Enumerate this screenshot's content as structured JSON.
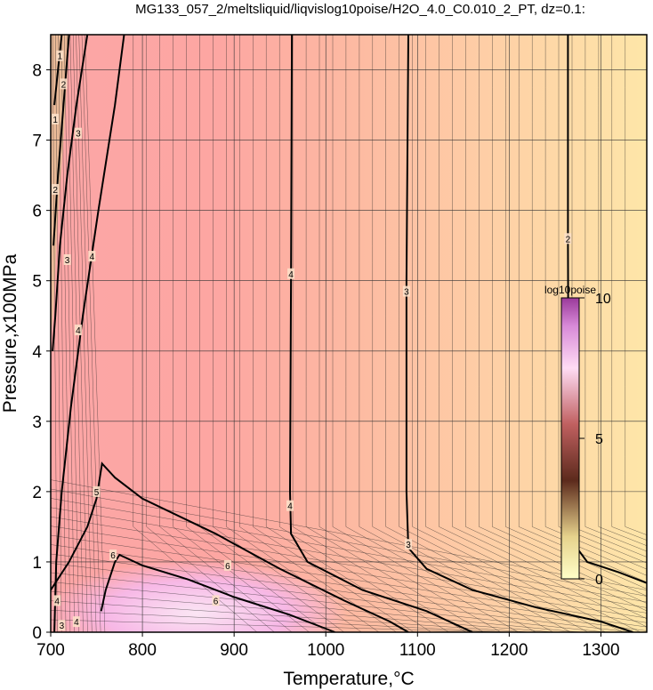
{
  "chart_data": {
    "type": "heatmap",
    "title": "MG133_057_2/meltsliquid/liqvislog10poise/H2O_4.0_C0.010_2_PT, dz=0.1:",
    "xlabel": "Temperature,°C",
    "ylabel": "Pressure,x100MPa",
    "xlim": [
      700,
      1350
    ],
    "ylim": [
      0,
      8.5
    ],
    "xticks": [
      "700",
      "800",
      "900",
      "1000",
      "1100",
      "1200",
      "1300"
    ],
    "yticks": [
      "0",
      "1",
      "2",
      "3",
      "4",
      "5",
      "6",
      "7",
      "8"
    ],
    "grid": true,
    "contour_interval": 0.1,
    "colorbar": {
      "title": "log10poise",
      "range": [
        0,
        10
      ],
      "ticks": [
        "0",
        "5",
        "10"
      ],
      "colors": [
        "#ffffc8",
        "#5c2a1c",
        "#ffdcf4",
        "#9a3a9a"
      ]
    },
    "background_colors": {
      "low_viscosity": "#fee3a6",
      "mid_viscosity": "#fdb8a0",
      "high_viscosity": "#fda6a2",
      "very_high": "#f7a2ec"
    },
    "contours": [
      {
        "level": 2,
        "label": "2",
        "points": [
          [
            1264,
            8.5
          ],
          [
            1264,
            5.5
          ],
          [
            1265,
            2.0
          ],
          [
            1268,
            1.3
          ],
          [
            1285,
            1.0
          ],
          [
            1320,
            0.85
          ],
          [
            1350,
            0.7
          ]
        ]
      },
      {
        "level": 3,
        "label": "3",
        "points": [
          [
            1090,
            8.5
          ],
          [
            1088,
            5.0
          ],
          [
            1088,
            2.0
          ],
          [
            1090,
            1.2
          ],
          [
            1110,
            0.9
          ],
          [
            1160,
            0.6
          ],
          [
            1230,
            0.35
          ],
          [
            1300,
            0.15
          ],
          [
            1335,
            0
          ]
        ]
      },
      {
        "level": 4,
        "label": "4",
        "points": [
          [
            963,
            8.5
          ],
          [
            962,
            5.0
          ],
          [
            961,
            2.0
          ],
          [
            962,
            1.4
          ],
          [
            980,
            1.0
          ],
          [
            1040,
            0.6
          ],
          [
            1110,
            0.3
          ],
          [
            1160,
            0
          ]
        ]
      },
      {
        "level": 4,
        "label": "4",
        "points": [
          [
            780,
            8.5
          ],
          [
            770,
            7.5
          ],
          [
            752,
            6.0
          ],
          [
            735,
            4.5
          ],
          [
            722,
            3.2
          ],
          [
            712,
            2.0
          ],
          [
            706,
            1.0
          ],
          [
            704,
            0
          ]
        ]
      },
      {
        "level": 5,
        "label": "5",
        "points": [
          [
            700,
            0.6
          ],
          [
            720,
            1.0
          ],
          [
            740,
            1.5
          ],
          [
            750,
            1.9
          ],
          [
            756,
            2.4
          ],
          [
            770,
            2.2
          ],
          [
            800,
            1.9
          ],
          [
            880,
            1.4
          ],
          [
            950,
            0.9
          ],
          [
            1020,
            0.45
          ],
          [
            1070,
            0.15
          ],
          [
            1090,
            0
          ]
        ]
      },
      {
        "level": 6,
        "label": "6",
        "points": [
          [
            755,
            0.3
          ],
          [
            760,
            0.6
          ],
          [
            770,
            1.0
          ],
          [
            775,
            1.1
          ],
          [
            800,
            0.95
          ],
          [
            850,
            0.75
          ],
          [
            900,
            0.5
          ],
          [
            960,
            0.25
          ],
          [
            1000,
            0.05
          ],
          [
            1010,
            0
          ]
        ]
      },
      {
        "level": 3,
        "label": "3",
        "points": [
          [
            740,
            8.5
          ],
          [
            728,
            7.5
          ],
          [
            718,
            6.5
          ],
          [
            710,
            5.5
          ],
          [
            705,
            4.5
          ],
          [
            702,
            4.0
          ]
        ]
      },
      {
        "level": 2,
        "label": "2",
        "points": [
          [
            720,
            8.5
          ],
          [
            714,
            7.5
          ],
          [
            708,
            6.5
          ],
          [
            703,
            5.5
          ]
        ]
      },
      {
        "level": 1,
        "label": "1",
        "points": [
          [
            712,
            8.5
          ],
          [
            708,
            8.0
          ],
          [
            704,
            7.5
          ]
        ]
      }
    ],
    "contour_labels": [
      {
        "text": "2",
        "x": 1264,
        "y": 5.6
      },
      {
        "text": "3",
        "x": 1088,
        "y": 4.85
      },
      {
        "text": "4",
        "x": 962,
        "y": 5.1
      },
      {
        "text": "4",
        "x": 961,
        "y": 1.8
      },
      {
        "text": "3",
        "x": 1090,
        "y": 1.25
      },
      {
        "text": "4",
        "x": 745,
        "y": 5.35
      },
      {
        "text": "4",
        "x": 730,
        "y": 4.3
      },
      {
        "text": "5",
        "x": 750,
        "y": 2.0
      },
      {
        "text": "6",
        "x": 768,
        "y": 1.1
      },
      {
        "text": "6",
        "x": 893,
        "y": 0.95
      },
      {
        "text": "6",
        "x": 880,
        "y": 0.45
      },
      {
        "text": "3",
        "x": 730,
        "y": 7.1
      },
      {
        "text": "3",
        "x": 718,
        "y": 5.3
      },
      {
        "text": "2",
        "x": 714,
        "y": 7.8
      },
      {
        "text": "2",
        "x": 705,
        "y": 6.3
      },
      {
        "text": "1",
        "x": 710,
        "y": 8.2
      },
      {
        "text": "1",
        "x": 705,
        "y": 7.3
      },
      {
        "text": "4",
        "x": 707,
        "y": 0.45
      },
      {
        "text": "3",
        "x": 712,
        "y": 0.1
      },
      {
        "text": "4",
        "x": 728,
        "y": 0.15
      }
    ]
  }
}
